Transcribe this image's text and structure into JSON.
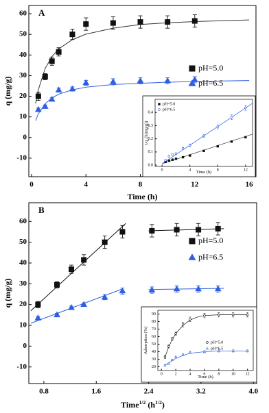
{
  "chart_data": [
    {
      "type": "scatter",
      "panel_label": "A",
      "x_label": [
        "Time (h)"
      ],
      "y_label": [
        "q (mg/g)"
      ],
      "xlim": [
        -0.2,
        16.5
      ],
      "ylim": [
        -19,
        64
      ],
      "xticks": [
        0,
        4,
        8,
        12,
        16
      ],
      "yticks": [
        -10,
        0,
        10,
        20,
        30,
        40,
        50,
        60
      ],
      "legend": "right",
      "series": [
        {
          "name": "pH=5.0",
          "color": "#111111",
          "marker": "square",
          "open": false,
          "x": [
            0.5,
            1,
            1.5,
            2,
            3,
            4,
            6,
            8,
            10,
            12
          ],
          "values": [
            20,
            29.5,
            37,
            41.5,
            50,
            55,
            55.5,
            56,
            56,
            56.5
          ],
          "errors": [
            2,
            1.5,
            2,
            2,
            2.5,
            3,
            3,
            3,
            3,
            3
          ]
        },
        {
          "name": "pH=6.5",
          "color": "#2f5fe0",
          "marker": "triangle",
          "open": false,
          "x": [
            0.5,
            1,
            1.5,
            2,
            3,
            4,
            6,
            8,
            10,
            12
          ],
          "values": [
            13.5,
            15,
            18.5,
            23,
            23.5,
            26.5,
            27,
            27.5,
            27.5,
            28
          ],
          "errors": [
            0.8,
            0.8,
            0.8,
            1,
            1,
            1.2,
            1.5,
            1.5,
            1.5,
            1.5
          ]
        }
      ],
      "fits": [
        {
          "color": "#333333",
          "x": [
            0.3,
            0.5,
            1,
            1.5,
            2,
            3,
            4,
            6,
            8,
            10,
            12,
            14,
            16
          ],
          "values": [
            16.5,
            23.2,
            33.5,
            39.2,
            43,
            47.4,
            50.1,
            53,
            54.8,
            55.6,
            56.2,
            56.6,
            57
          ]
        },
        {
          "color": "#2f5fe0",
          "x": [
            0.3,
            0.5,
            1,
            1.5,
            2,
            3,
            4,
            6,
            8,
            10,
            12,
            14,
            16
          ],
          "values": [
            8.2,
            11.5,
            16.4,
            19.2,
            21,
            23.1,
            24.4,
            25.7,
            26.3,
            26.8,
            27.1,
            27.4,
            27.6
          ]
        }
      ]
    },
    {
      "type": "scatter",
      "x_label": [
        "Time (h)"
      ],
      "y_label": [
        "t/q",
        "t",
        " (h(mg/g))"
      ],
      "xlim": [
        -1,
        13
      ],
      "ylim": [
        -0.01,
        0.5
      ],
      "xticks": [
        0,
        4,
        8,
        12
      ],
      "yticks": [
        {
          "value": 0,
          "label": "0.0"
        },
        0.1,
        0.2,
        0.3,
        0.4
      ],
      "legend": "upper left",
      "series": [
        {
          "name": "pH=5.0",
          "color": "#111111",
          "marker": "square",
          "open": false,
          "x": [
            0.5,
            1,
            1.5,
            2,
            3,
            4,
            6,
            8,
            10,
            12
          ],
          "values": [
            0.025,
            0.034,
            0.041,
            0.048,
            0.06,
            0.073,
            0.108,
            0.143,
            0.179,
            0.212
          ]
        },
        {
          "name": "pH=6.5",
          "color": "#2f5fe0",
          "marker": "circle",
          "open": true,
          "x": [
            0.5,
            1,
            1.5,
            2,
            3,
            4,
            6,
            8,
            10,
            12
          ],
          "values": [
            0.037,
            0.067,
            0.081,
            0.087,
            0.128,
            0.151,
            0.222,
            0.291,
            0.364,
            0.436
          ],
          "errors": [
            0.005,
            0.005,
            0.005,
            0.006,
            0.008,
            0.01,
            0.012,
            0.015,
            0.018,
            0.02
          ]
        }
      ],
      "fits": [
        {
          "color": "#333333",
          "x": [
            0,
            13
          ],
          "values": [
            0.01,
            0.235
          ]
        },
        {
          "color": "#2f5fe0",
          "x": [
            0,
            13
          ],
          "values": [
            0.01,
            0.47
          ]
        }
      ]
    },
    {
      "type": "scatter",
      "panel_label": "B",
      "x_label": [
        "Time",
        "1/2",
        " (h",
        "1/2",
        ")"
      ],
      "y_label": [
        "q (mg/g)"
      ],
      "xlim": [
        0.57,
        4.05
      ],
      "ylim": [
        -18,
        69
      ],
      "xticks": [
        0.8,
        1.6,
        2.4,
        3.2,
        {
          "value": 4,
          "label": "4.0"
        }
      ],
      "yticks": [
        -10,
        0,
        10,
        20,
        30,
        40,
        50,
        60
      ],
      "legend": "right",
      "series": [
        {
          "name": "pH=5.0",
          "color": "#111111",
          "marker": "square",
          "open": false,
          "x": [
            0.71,
            1,
            1.22,
            1.41,
            1.73,
            2,
            2.45,
            2.83,
            3.16,
            3.46
          ],
          "values": [
            20,
            29.5,
            37,
            41.5,
            50,
            55,
            55.5,
            56,
            56,
            56.5
          ],
          "errors": [
            1.5,
            1.5,
            2,
            2.5,
            3,
            3,
            3,
            3,
            3,
            3
          ]
        },
        {
          "name": "pH=6.5",
          "color": "#2f5fe0",
          "marker": "triangle",
          "open": false,
          "x": [
            0.71,
            1,
            1.22,
            1.41,
            1.73,
            2,
            2.45,
            2.83,
            3.16,
            3.46
          ],
          "values": [
            13.5,
            15,
            18.5,
            20,
            23.5,
            26.5,
            27,
            27.5,
            27.5,
            27.5
          ],
          "errors": [
            0.8,
            0.8,
            0.8,
            0.8,
            1.2,
            1.5,
            1.5,
            1.5,
            1.5,
            1.5
          ]
        }
      ],
      "fits": [
        {
          "color": "#111111",
          "x": [
            0.6,
            2.05
          ],
          "values": [
            17,
            59
          ]
        },
        {
          "color": "#111111",
          "x": [
            2.4,
            3.55
          ],
          "values": [
            55.5,
            56.5
          ]
        },
        {
          "color": "#2f5fe0",
          "x": [
            0.6,
            2.0
          ],
          "values": [
            11,
            27.5
          ]
        },
        {
          "color": "#2f5fe0",
          "x": [
            2.4,
            3.55
          ],
          "values": [
            27.2,
            27.8
          ]
        }
      ]
    },
    {
      "type": "scatter",
      "x_label": [
        "Time (h)"
      ],
      "y_label": [
        "Adsorption (%)"
      ],
      "xlim": [
        -0.5,
        12.8
      ],
      "ylim": [
        15,
        95
      ],
      "xticks": [
        0,
        2,
        4,
        6,
        8,
        10,
        12
      ],
      "yticks": [
        20,
        30,
        40,
        50,
        60,
        70,
        80,
        90
      ],
      "legend": "center right",
      "series": [
        {
          "name": "pH=5.0",
          "color": "#111111",
          "marker": "circle",
          "open": true,
          "x": [
            0.5,
            1,
            1.5,
            2,
            3,
            4,
            6,
            8,
            10,
            12
          ],
          "values": [
            33,
            47,
            57,
            64,
            76,
            83,
            88,
            89,
            89,
            89
          ],
          "errors": [
            2,
            2,
            2,
            2,
            3,
            3,
            3,
            3,
            3,
            3
          ]
        },
        {
          "name": "pH=6.5",
          "color": "#2f5fe0",
          "marker": "triangle",
          "open": true,
          "x": [
            0.5,
            1,
            1.5,
            2,
            3,
            4,
            6,
            8,
            10,
            12
          ],
          "values": [
            22,
            24,
            29,
            33,
            36,
            39,
            40,
            41,
            41,
            41
          ],
          "errors": [
            1,
            1,
            1,
            1,
            1.5,
            1.5,
            1.5,
            1.5,
            1.5,
            1.5
          ]
        }
      ],
      "fits": [
        {
          "color": "#111111",
          "x": [
            0.5,
            1,
            1.5,
            2,
            3,
            4,
            5,
            6,
            8,
            10,
            12
          ],
          "values": [
            33,
            46,
            56,
            64,
            75,
            82,
            86,
            88,
            89,
            89,
            89
          ]
        },
        {
          "color": "#2f5fe0",
          "x": [
            0.5,
            1,
            1.5,
            2,
            3,
            4,
            5,
            6,
            8,
            10,
            12
          ],
          "values": [
            22,
            25,
            28,
            31,
            35,
            38,
            39,
            40,
            41,
            41,
            41
          ]
        }
      ]
    }
  ]
}
